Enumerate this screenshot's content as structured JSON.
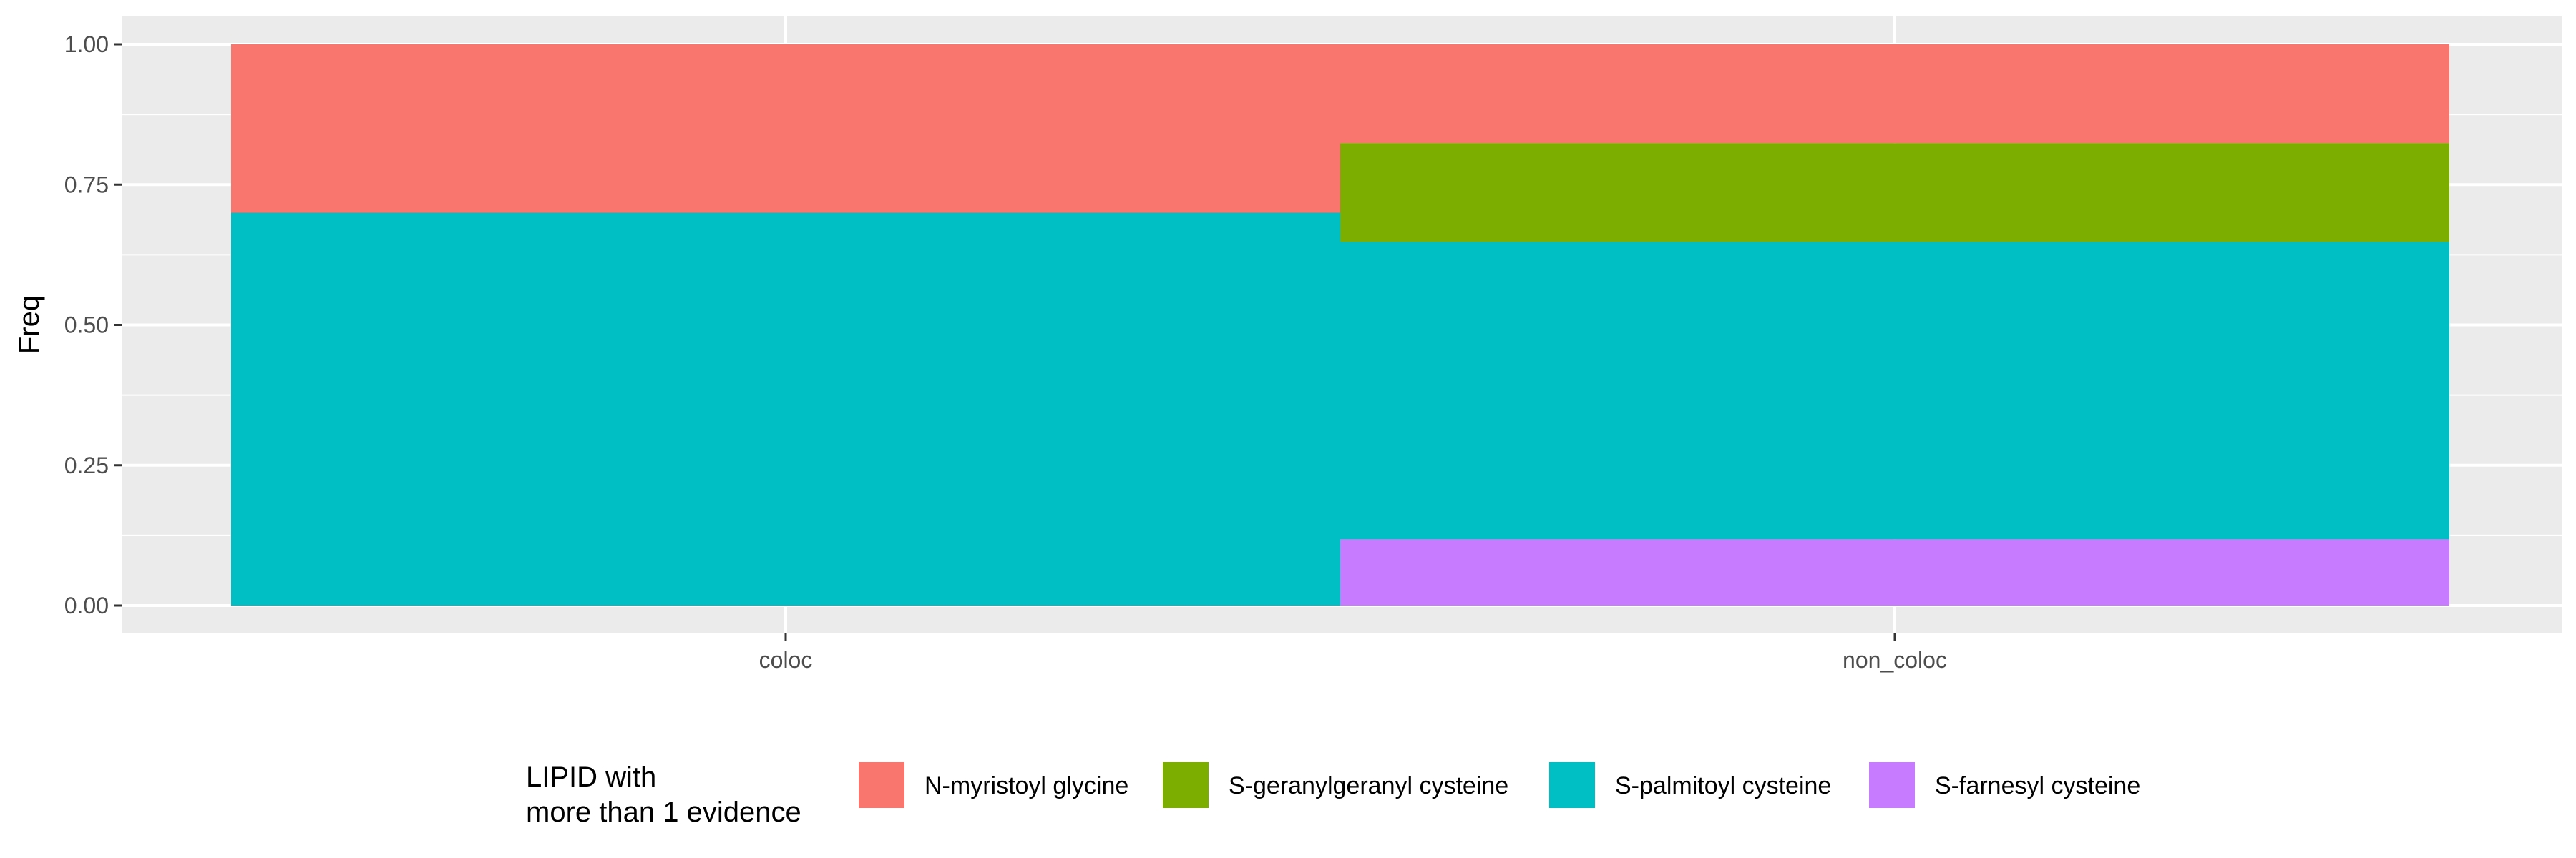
{
  "chart_data": {
    "type": "bar",
    "stacked": true,
    "position": "fill",
    "categories": [
      "coloc",
      "non_coloc"
    ],
    "ylabel": "Freq",
    "xlabel": "",
    "ylim": [
      0,
      1
    ],
    "yticks": [
      "0.00",
      "0.25",
      "0.50",
      "0.75",
      "1.00"
    ],
    "grid": true,
    "legend": {
      "title": [
        "LIPID with",
        "more than 1 evidence"
      ],
      "placement": "bottom"
    },
    "series": [
      {
        "name": "N-myristoyl glycine",
        "color": "#F8766D",
        "values": [
          0.3,
          0.176
        ]
      },
      {
        "name": "S-geranylgeranyl cysteine",
        "color": "#7CAE00",
        "values": [
          0.0,
          0.176
        ]
      },
      {
        "name": "S-palmitoyl cysteine",
        "color": "#00BFC4",
        "values": [
          0.7,
          0.53
        ]
      },
      {
        "name": "S-farnesyl cysteine",
        "color": "#C77CFF",
        "values": [
          0.0,
          0.118
        ]
      }
    ]
  }
}
